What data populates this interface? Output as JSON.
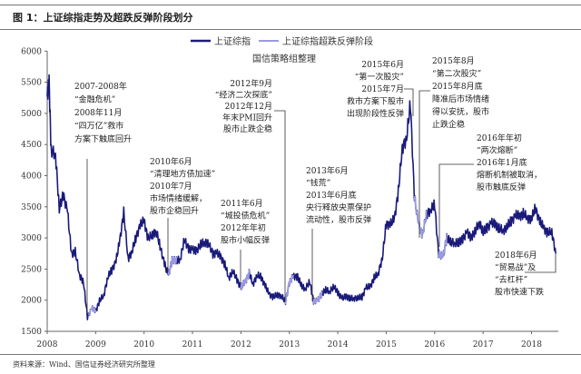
{
  "figure_title": "图 1：上证综指走势及超跌反弹阶段划分",
  "source_note": "资料来源：Wind、国信证券经济研究所整理",
  "colors": {
    "main": "#1a1a7a",
    "rebound": "#9a9ae0",
    "annotation": "#222222"
  },
  "chart_data": {
    "type": "line",
    "title": "",
    "subtitle": "国信策略组整理",
    "xlabel": "",
    "ylabel": "",
    "xlim": [
      2008,
      2019
    ],
    "ylim": [
      1500,
      6000
    ],
    "grid": false,
    "legend_position": "top-center",
    "x_tick_labels": [
      "2008",
      "2009",
      "2010",
      "2011",
      "2012",
      "2013",
      "2014",
      "2015",
      "2016",
      "2017",
      "2018"
    ],
    "y_tick_labels": [
      "1500",
      "2000",
      "2500",
      "3000",
      "3500",
      "4000",
      "4500",
      "5000",
      "5500",
      "6000"
    ],
    "legend": [
      "上证综指",
      "上证综指超跌反弹阶段"
    ],
    "series": [
      {
        "name": "上证综指",
        "x": [
          2008.0,
          2008.04,
          2008.08,
          2008.17,
          2008.25,
          2008.33,
          2008.42,
          2008.5,
          2008.58,
          2008.67,
          2008.75,
          2008.83,
          2008.92,
          2009.0,
          2009.08,
          2009.17,
          2009.25,
          2009.33,
          2009.42,
          2009.5,
          2009.58,
          2009.67,
          2009.75,
          2009.83,
          2009.92,
          2010.0,
          2010.08,
          2010.17,
          2010.25,
          2010.33,
          2010.42,
          2010.5,
          2010.58,
          2010.67,
          2010.75,
          2010.83,
          2010.92,
          2011.0,
          2011.08,
          2011.17,
          2011.25,
          2011.33,
          2011.42,
          2011.5,
          2011.58,
          2011.67,
          2011.75,
          2011.83,
          2011.92,
          2012.0,
          2012.08,
          2012.17,
          2012.25,
          2012.33,
          2012.42,
          2012.5,
          2012.58,
          2012.67,
          2012.75,
          2012.83,
          2012.92,
          2013.0,
          2013.08,
          2013.17,
          2013.25,
          2013.33,
          2013.42,
          2013.5,
          2013.58,
          2013.67,
          2013.75,
          2013.83,
          2013.92,
          2014.0,
          2014.08,
          2014.17,
          2014.25,
          2014.33,
          2014.42,
          2014.5,
          2014.58,
          2014.67,
          2014.75,
          2014.83,
          2014.92,
          2015.0,
          2015.08,
          2015.17,
          2015.25,
          2015.33,
          2015.42,
          2015.5,
          2015.58,
          2015.67,
          2015.75,
          2015.83,
          2015.92,
          2016.0,
          2016.08,
          2016.17,
          2016.25,
          2016.33,
          2016.42,
          2016.5,
          2016.58,
          2016.67,
          2016.75,
          2016.83,
          2016.92,
          2017.0,
          2017.08,
          2017.17,
          2017.25,
          2017.33,
          2017.42,
          2017.5,
          2017.58,
          2017.67,
          2017.75,
          2017.83,
          2017.92,
          2018.0,
          2018.08,
          2018.17,
          2018.25,
          2018.33,
          2018.42,
          2018.5
        ],
        "values": [
          5270,
          5500,
          4400,
          4350,
          3470,
          3690,
          3430,
          2740,
          2780,
          2400,
          2290,
          1730,
          1870,
          1820,
          1990,
          2080,
          2370,
          2480,
          2630,
          2960,
          3410,
          2670,
          2780,
          3000,
          3200,
          3280,
          2990,
          3050,
          3110,
          2870,
          2590,
          2400,
          2640,
          2640,
          2660,
          2980,
          2820,
          2810,
          2790,
          2900,
          2930,
          2910,
          2740,
          2760,
          2700,
          2570,
          2360,
          2470,
          2330,
          2200,
          2290,
          2430,
          2260,
          2400,
          2370,
          2230,
          2100,
          2050,
          2090,
          2070,
          1980,
          2270,
          2390,
          2370,
          2240,
          2180,
          2300,
          1980,
          1990,
          2100,
          2170,
          2140,
          2220,
          2120,
          2030,
          2060,
          2030,
          2030,
          2040,
          2050,
          2200,
          2220,
          2360,
          2420,
          2680,
          3230,
          3210,
          3310,
          3750,
          4440,
          4610,
          5170,
          3660,
          3210,
          3050,
          3380,
          3450,
          3540,
          2740,
          2690,
          3000,
          2940,
          2920,
          2930,
          2980,
          3090,
          3000,
          3100,
          3250,
          3100,
          3160,
          3240,
          3220,
          3150,
          3120,
          3190,
          3270,
          3360,
          3350,
          3390,
          3320,
          3310,
          3480,
          3260,
          3170,
          3080,
          3100,
          2750
        ]
      },
      {
        "name": "上证综指超跌反弹阶段",
        "ranges": [
          [
            2008.85,
            2009.0
          ],
          [
            2010.5,
            2010.67
          ],
          [
            2012.0,
            2012.17
          ],
          [
            2012.92,
            2013.08
          ],
          [
            2013.5,
            2013.67
          ],
          [
            2015.58,
            2015.67
          ],
          [
            2015.67,
            2015.83
          ],
          [
            2016.08,
            2016.25
          ]
        ]
      }
    ],
    "annotations": [
      {
        "date": "2008-11",
        "lines": [
          "2007-2008年",
          "“金融危机”",
          "2008年11月",
          "“四万亿”救市",
          "方案下触底回升"
        ]
      },
      {
        "date": "2012-12",
        "lines": [
          "2012年9月",
          "“经济二次探底”",
          "2012年12月",
          "年末PMI回升",
          "股市止跌企稳"
        ]
      },
      {
        "date": "2010-07",
        "lines": [
          "2010年6月",
          "“清理地方债加速”",
          "2010年7月",
          "市场情绪缓解，",
          "股市企稳回升"
        ]
      },
      {
        "date": "2012-01",
        "lines": [
          "2011年6月",
          "“城投债危机”",
          "2012年年初",
          "股市小幅反弹"
        ]
      },
      {
        "date": "2013-06",
        "lines": [
          "2013年6月",
          "“钱荒”",
          "2013年6月底",
          "央行释放央票保护",
          "流动性，股市反弹"
        ]
      },
      {
        "date": "2015-07",
        "lines": [
          "2015年6月",
          "“第一次股灾”",
          "2015年7月",
          "救市方案下股市",
          "出现阶段性反弹"
        ]
      },
      {
        "date": "2015-08",
        "lines": [
          "2015年8月",
          "“第二次股灾”",
          "2015年8月底",
          "降准后市场情绪",
          "得以安抚，股市",
          "止跌企稳"
        ]
      },
      {
        "date": "2016-01",
        "lines": [
          "2016年年初",
          "“两次熔断”",
          "2016年1月底",
          "熔断机制被取消，",
          "股市触底反弹"
        ]
      },
      {
        "date": "2018-06",
        "lines": [
          "2018年6月",
          "“贸易战”及",
          "“去杠杆”",
          "股市快速下跌"
        ]
      }
    ]
  }
}
